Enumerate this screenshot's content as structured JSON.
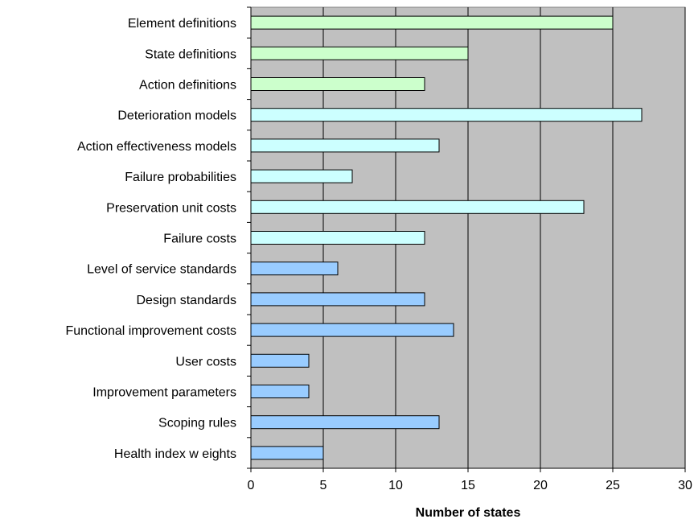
{
  "chart_data": {
    "type": "bar",
    "orientation": "horizontal",
    "categories": [
      "Element definitions",
      "State definitions",
      "Action definitions",
      "Deterioration models",
      "Action effectiveness models",
      "Failure probabilities",
      "Preservation unit costs",
      "Failure costs",
      "Level of service standards",
      "Design standards",
      "Functional improvement costs",
      "User costs",
      "Improvement parameters",
      "Scoping rules",
      "Health index w eights"
    ],
    "values": [
      25,
      15,
      12,
      27,
      13,
      7,
      23,
      12,
      6,
      12,
      14,
      4,
      4,
      13,
      5
    ],
    "bar_colors": [
      "#ccffcc",
      "#ccffcc",
      "#ccffcc",
      "#ccffff",
      "#ccffff",
      "#ccffff",
      "#ccffff",
      "#ccffff",
      "#99ccff",
      "#99ccff",
      "#99ccff",
      "#99ccff",
      "#99ccff",
      "#99ccff",
      "#99ccff"
    ],
    "xlabel": "Number of states",
    "ylabel": "",
    "title": "",
    "xlim": [
      0,
      30
    ],
    "xticks": [
      0,
      5,
      10,
      15,
      20,
      25,
      30
    ],
    "grid": "vertical",
    "plot_background": "#c0c0c0",
    "legend": "none"
  }
}
